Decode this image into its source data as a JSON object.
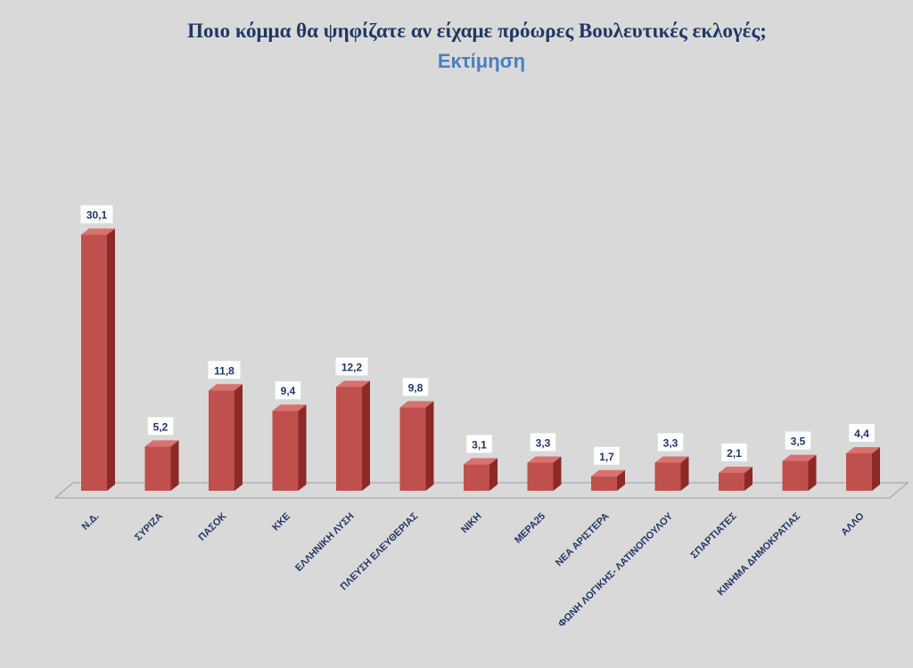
{
  "title": "Ποιο κόμμα θα ψηφίζατε αν είχαμε πρόωρες Βουλευτικές εκλογές;",
  "subtitle": "Εκτίμηση",
  "chart_data": {
    "type": "bar",
    "title": "Ποιο κόμμα θα ψηφίζατε αν είχαμε πρόωρες Βουλευτικές εκλογές;",
    "subtitle": "Εκτίμηση",
    "categories": [
      "Ν.Δ.",
      "ΣΥΡΙΖΑ",
      "ΠΑΣΟΚ",
      "ΚΚΕ",
      "ΕΛΛΗΝΙΚΗ ΛΥΣΗ",
      "ΠΛΕΥΣΗ ΕΛΕΥΘΕΡΙΑΣ",
      "ΝΙΚΗ",
      "ΜΕΡΑ25",
      "ΝΕΑ ΑΡΙΣΤΕΡΑ",
      "ΦΩΝΗ ΛΟΓΙΚΗΣ- ΛΑΤΙΝΟΠΟΥΛΟΥ",
      "ΣΠΑΡΤΙΑΤΕΣ",
      "ΚΙΝΗΜΑ ΔΗΜΟΚΡΑΤΙΑΣ",
      "ΑΛΛΟ"
    ],
    "values": [
      30.1,
      5.2,
      11.8,
      9.4,
      12.2,
      9.8,
      3.1,
      3.3,
      1.7,
      3.3,
      2.1,
      3.5,
      4.4
    ],
    "value_labels": [
      "30,1",
      "5,2",
      "11,8",
      "9,4",
      "12,2",
      "9,8",
      "3,1",
      "3,3",
      "1,7",
      "3,3",
      "2,1",
      "3,5",
      "4,4"
    ],
    "xlabel": "",
    "ylabel": "",
    "ylim": [
      0,
      31
    ],
    "grid": false,
    "legend": "none",
    "colors": {
      "bar_front": "#c0504d",
      "bar_side": "#8b2a28",
      "bar_top": "#d9716e",
      "label_text": "#1f3864"
    }
  }
}
